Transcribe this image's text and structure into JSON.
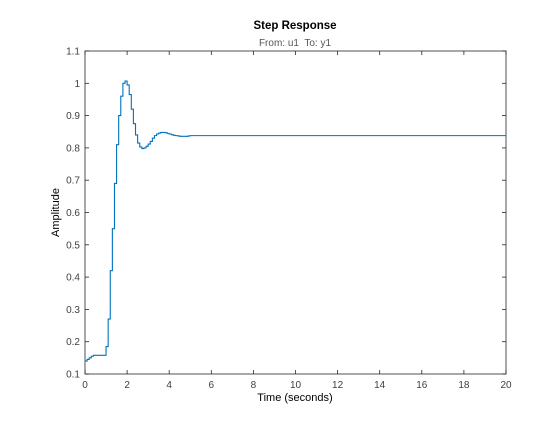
{
  "chart_data": {
    "type": "line",
    "title": "Step Response",
    "subtitle": "From: u1  To: y1",
    "xlabel": "Time (seconds)",
    "ylabel": "Amplitude",
    "xlim": [
      0,
      20
    ],
    "ylim": [
      0.1,
      1.1
    ],
    "xticks": [
      0,
      2,
      4,
      6,
      8,
      10,
      12,
      14,
      16,
      18,
      20
    ],
    "yticks": [
      0.1,
      0.2,
      0.3,
      0.4,
      0.5,
      0.6,
      0.7,
      0.8,
      0.9,
      1,
      1.1
    ],
    "grid": false,
    "legend": "none",
    "line_color": "#0072BD",
    "line_style": "stairs",
    "series": [
      {
        "x": [
          0,
          0.1,
          0.2,
          0.3,
          0.4,
          0.5,
          0.6,
          0.7,
          0.8,
          0.9,
          1.0,
          1.1,
          1.2,
          1.3,
          1.4,
          1.5,
          1.6,
          1.7,
          1.8,
          1.9,
          2.0,
          2.1,
          2.2,
          2.3,
          2.4,
          2.5,
          2.6,
          2.7,
          2.8,
          2.9,
          3.0,
          3.1,
          3.2,
          3.3,
          3.4,
          3.5,
          3.6,
          3.7,
          3.8,
          3.9,
          4.0,
          4.1,
          4.2,
          4.3,
          4.4,
          4.5,
          4.6,
          4.7,
          4.8,
          4.9,
          5.0,
          5.1,
          5.2,
          5.3,
          5.5,
          6.0,
          8.0,
          10.0,
          12.0,
          14.0,
          16.0,
          18.0,
          20.0
        ],
        "y": [
          0.14,
          0.145,
          0.15,
          0.155,
          0.158,
          0.158,
          0.158,
          0.158,
          0.158,
          0.158,
          0.185,
          0.27,
          0.42,
          0.55,
          0.69,
          0.81,
          0.9,
          0.96,
          1.0,
          1.007,
          0.995,
          0.965,
          0.92,
          0.875,
          0.84,
          0.815,
          0.803,
          0.798,
          0.8,
          0.805,
          0.812,
          0.82,
          0.83,
          0.838,
          0.843,
          0.846,
          0.848,
          0.848,
          0.847,
          0.845,
          0.843,
          0.841,
          0.839,
          0.838,
          0.837,
          0.836,
          0.836,
          0.836,
          0.836,
          0.837,
          0.838,
          0.838,
          0.838,
          0.838,
          0.838,
          0.838,
          0.838,
          0.838,
          0.838,
          0.838,
          0.838,
          0.838,
          0.838
        ]
      }
    ]
  }
}
